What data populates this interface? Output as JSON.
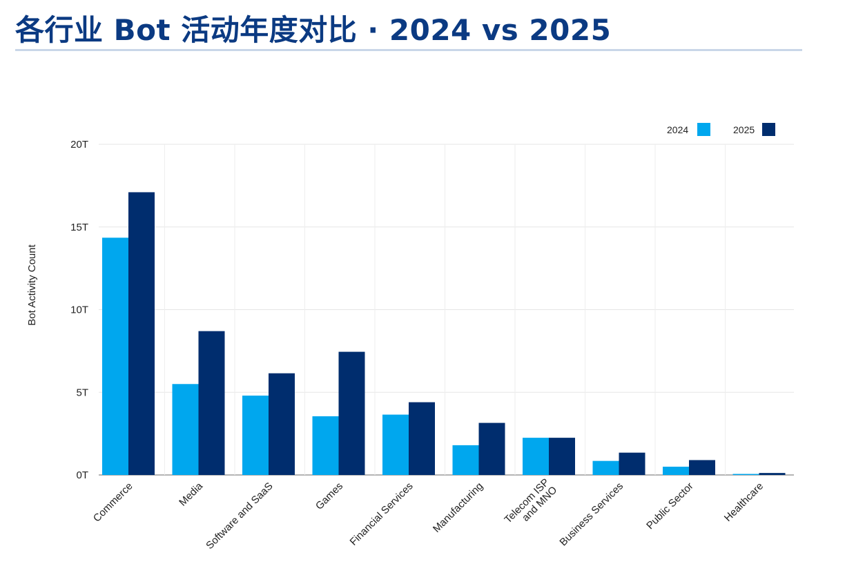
{
  "page": {
    "title": "各行业 Bot 活动年度对比 · 2024 vs 2025"
  },
  "chart_data": {
    "type": "bar",
    "ylabel": "Bot Activity Count",
    "ylim": [
      0,
      20
    ],
    "yticks": [
      "0T",
      "5T",
      "10T",
      "15T",
      "20T"
    ],
    "ytick_values": [
      0,
      5,
      10,
      15,
      20
    ],
    "unit": "T",
    "legend_position": "top-right",
    "grid": true,
    "categories": [
      "Commerce",
      "Media",
      "Software and SaaS",
      "Games",
      "Financial Services",
      "Manufacturing",
      "Telecom ISP\nand MNO",
      "Business Services",
      "Public Sector",
      "Healthcare"
    ],
    "series": [
      {
        "name": "2024",
        "color": "#00a7ee",
        "values": [
          14.35,
          5.5,
          4.8,
          3.55,
          3.65,
          1.8,
          2.25,
          0.85,
          0.5,
          0.05
        ]
      },
      {
        "name": "2025",
        "color": "#002d6e",
        "values": [
          17.1,
          8.7,
          6.15,
          7.45,
          4.4,
          3.15,
          2.25,
          1.35,
          0.9,
          0.12
        ]
      }
    ]
  }
}
